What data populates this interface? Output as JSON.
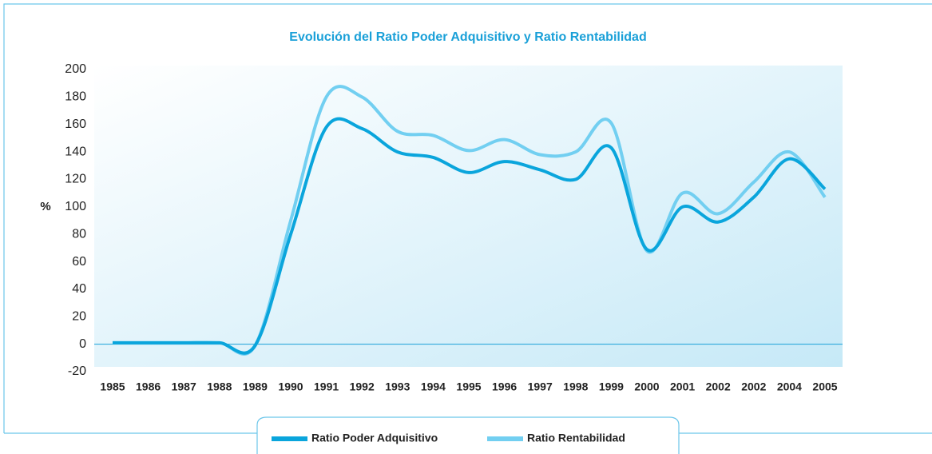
{
  "chart_data": {
    "type": "line",
    "title": "Evolución del Ratio Poder Adquisitivo y Ratio Rentabilidad",
    "y_label": "%",
    "categories": [
      "1985",
      "1986",
      "1987",
      "1988",
      "1989",
      "1990",
      "1991",
      "1992",
      "1993",
      "1994",
      "1995",
      "1996",
      "1997",
      "1998",
      "1999",
      "2000",
      "2001",
      "2002",
      "2002",
      "2004",
      "2005"
    ],
    "series": [
      {
        "name": "Ratio Poder Adquisitivo",
        "color": "#0aa5dc",
        "values": [
          1,
          1,
          1,
          1,
          -1,
          80,
          158,
          157,
          140,
          136,
          125,
          133,
          127,
          120,
          143,
          69,
          100,
          89,
          107,
          135,
          113
        ]
      },
      {
        "name": "Ratio Rentabilidad",
        "color": "#72cff1",
        "values": [
          1,
          1,
          1,
          1,
          -1,
          90,
          180,
          180,
          155,
          152,
          141,
          149,
          138,
          140,
          161,
          68,
          110,
          95,
          118,
          140,
          107
        ]
      }
    ],
    "ylim": [
      -20,
      200
    ],
    "yticks": [
      -20,
      0,
      20,
      40,
      60,
      80,
      100,
      120,
      140,
      160,
      180,
      200
    ],
    "legend": "bottom"
  }
}
